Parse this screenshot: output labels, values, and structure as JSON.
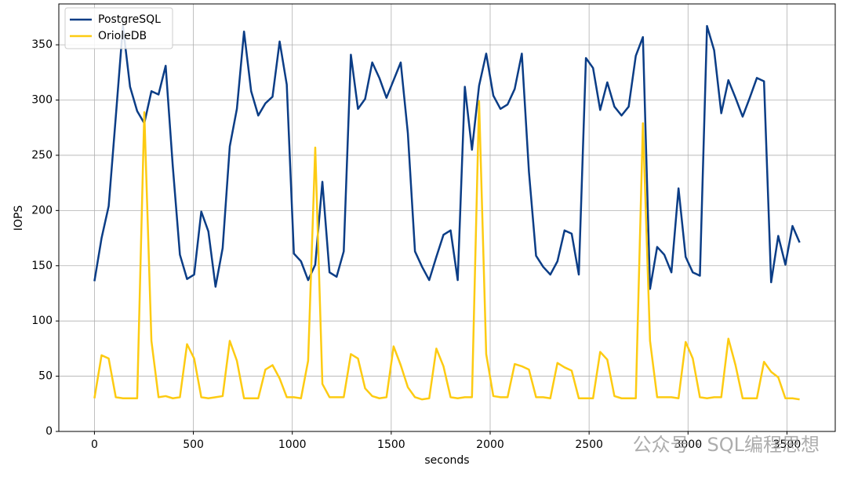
{
  "chart_data": {
    "type": "line",
    "xlabel": "seconds",
    "ylabel": "IOPS",
    "watermark": "公众号 · SQL编程思想",
    "x": [
      0,
      36,
      72,
      108,
      144,
      180,
      216,
      252,
      288,
      324,
      360,
      396,
      432,
      468,
      504,
      540,
      576,
      612,
      648,
      684,
      720,
      756,
      792,
      828,
      864,
      900,
      936,
      972,
      1008,
      1044,
      1080,
      1116,
      1152,
      1188,
      1224,
      1260,
      1296,
      1332,
      1368,
      1404,
      1440,
      1476,
      1512,
      1548,
      1584,
      1620,
      1656,
      1692,
      1728,
      1764,
      1800,
      1836,
      1872,
      1908,
      1944,
      1980,
      2016,
      2052,
      2088,
      2124,
      2160,
      2196,
      2232,
      2268,
      2304,
      2340,
      2376,
      2412,
      2448,
      2484,
      2520,
      2556,
      2592,
      2628,
      2664,
      2700,
      2736,
      2772,
      2808,
      2844,
      2880,
      2916,
      2952,
      2988,
      3024,
      3060,
      3096,
      3132,
      3168,
      3204,
      3240,
      3276,
      3312,
      3348,
      3384,
      3420,
      3456,
      3492,
      3528,
      3564
    ],
    "series": [
      {
        "name": "PostgreSQL",
        "color": "#0b3d86",
        "values": [
          136,
          175,
          204,
          285,
          367,
          312,
          290,
          279,
          308,
          305,
          331,
          240,
          160,
          138,
          142,
          199,
          181,
          131,
          166,
          258,
          292,
          362,
          308,
          286,
          297,
          303,
          353,
          314,
          161,
          154,
          137,
          151,
          226,
          144,
          140,
          163,
          341,
          292,
          301,
          334,
          320,
          302,
          318,
          334,
          270,
          163,
          149,
          137,
          158,
          178,
          182,
          137,
          312,
          255,
          313,
          342,
          304,
          292,
          296,
          310,
          342,
          235,
          159,
          149,
          142,
          154,
          182,
          179,
          142,
          338,
          329,
          291,
          316,
          294,
          286,
          294,
          340,
          357,
          129,
          167,
          160,
          144,
          220,
          158,
          144,
          141,
          367,
          345,
          288,
          318,
          302,
          285,
          302,
          320,
          317,
          135,
          177,
          151,
          186,
          171
        ]
      },
      {
        "name": "OrioleDB",
        "color": "#fdcb12",
        "values": [
          30,
          69,
          66,
          31,
          30,
          30,
          30,
          289,
          82,
          31,
          32,
          30,
          31,
          79,
          66,
          31,
          30,
          31,
          32,
          82,
          64,
          30,
          30,
          30,
          56,
          60,
          48,
          31,
          31,
          30,
          64,
          257,
          43,
          31,
          31,
          31,
          70,
          66,
          39,
          32,
          30,
          31,
          77,
          60,
          40,
          31,
          29,
          30,
          75,
          59,
          31,
          30,
          31,
          31,
          299,
          70,
          32,
          31,
          31,
          61,
          59,
          56,
          31,
          31,
          30,
          62,
          58,
          55,
          30,
          30,
          30,
          72,
          65,
          32,
          30,
          30,
          30,
          279,
          82,
          31,
          31,
          31,
          30,
          81,
          66,
          31,
          30,
          31,
          31,
          84,
          60,
          30,
          30,
          30,
          63,
          54,
          49,
          30,
          30,
          29
        ]
      }
    ],
    "xlim": [
      -180,
      3744
    ],
    "xticks": [
      0,
      500,
      1000,
      1500,
      2000,
      2500,
      3000,
      3500
    ],
    "ylim": [
      0,
      387
    ],
    "yticks": [
      0,
      50,
      100,
      150,
      200,
      250,
      300,
      350
    ],
    "grid": true,
    "legend": "upper-left"
  }
}
